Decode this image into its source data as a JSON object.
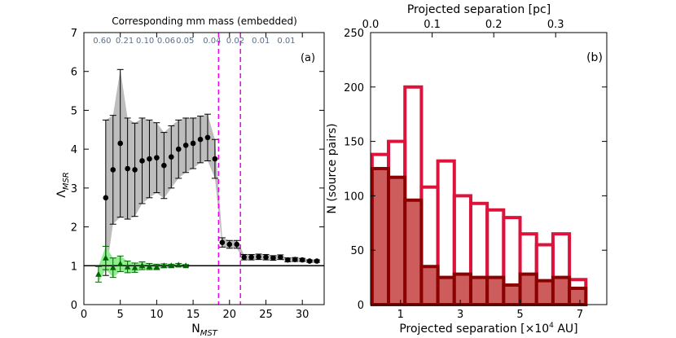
{
  "chart_data": [
    {
      "type": "scatter",
      "panel_label": "(a)",
      "xlabel": "N",
      "xlabel_sub": "MST",
      "ylabel": "Λ",
      "ylabel_sub": "MSR",
      "xlim": [
        0,
        33
      ],
      "ylim": [
        0,
        7
      ],
      "xticks": [
        0,
        5,
        10,
        15,
        20,
        25,
        30
      ],
      "yticks": [
        0,
        1,
        2,
        3,
        4,
        5,
        6,
        7
      ],
      "top_axis_title": "Corresponding mm mass (embedded)",
      "top_axis_labels": [
        {
          "x": 2.5,
          "label": "0.60"
        },
        {
          "x": 5.6,
          "label": "0.21"
        },
        {
          "x": 8.4,
          "label": "0.10"
        },
        {
          "x": 11.3,
          "label": "0.06"
        },
        {
          "x": 13.9,
          "label": "0.05"
        },
        {
          "x": 17.6,
          "label": "0.04"
        },
        {
          "x": 20.8,
          "label": "0.02"
        },
        {
          "x": 24.3,
          "label": "0.01"
        },
        {
          "x": 27.8,
          "label": "0.01"
        }
      ],
      "reference_line_y": 1,
      "vertical_dashed_lines_x": [
        18.5,
        21.5
      ],
      "colors": {
        "embedded_points": "#000000",
        "embedded_band": "#bdbdbd",
        "random_points": "#006400",
        "random_band": "#90ee90",
        "dashed": "#ee00ee"
      },
      "series": [
        {
          "marker": "circle",
          "x": [
            3,
            4,
            5,
            6,
            7,
            8,
            9,
            10,
            11,
            12,
            13,
            14,
            15,
            16,
            17,
            18,
            19,
            20,
            21,
            22,
            23,
            24,
            25,
            26,
            27,
            28,
            29,
            30,
            31,
            32
          ],
          "y": [
            2.75,
            3.47,
            4.15,
            3.5,
            3.47,
            3.7,
            3.75,
            3.78,
            3.58,
            3.8,
            4.0,
            4.1,
            4.15,
            4.25,
            4.3,
            3.75,
            1.6,
            1.55,
            1.55,
            1.22,
            1.22,
            1.23,
            1.22,
            1.2,
            1.22,
            1.15,
            1.16,
            1.15,
            1.12,
            1.12
          ],
          "yerr": [
            2.0,
            1.4,
            1.9,
            1.3,
            1.2,
            1.1,
            1.0,
            0.9,
            0.85,
            0.8,
            0.75,
            0.7,
            0.65,
            0.6,
            0.6,
            0.5,
            0.12,
            0.1,
            0.1,
            0.07,
            0.07,
            0.07,
            0.07,
            0.06,
            0.06,
            0.05,
            0.05,
            0.04,
            0.03,
            0.03
          ]
        },
        {
          "marker": "triangle",
          "x": [
            2,
            3,
            4,
            5,
            6,
            7,
            8,
            9,
            10,
            11,
            12,
            13,
            14
          ],
          "y": [
            0.78,
            1.2,
            0.95,
            1.05,
            0.97,
            0.95,
            1.0,
            0.98,
            0.97,
            1.0,
            1.0,
            1.02,
            1.0
          ],
          "yerr": [
            0.2,
            0.3,
            0.25,
            0.2,
            0.15,
            0.12,
            0.1,
            0.08,
            0.07,
            0.05,
            0.04,
            0.04,
            0.03
          ]
        }
      ]
    },
    {
      "type": "bar",
      "panel_label": "(b)",
      "xlabel": "Projected separation [×10",
      "xlabel_sup": "4",
      "xlabel_unit": " AU]",
      "ylabel": "N (source pairs)",
      "xlim": [
        0,
        7.9
      ],
      "ylim": [
        0,
        250
      ],
      "xticks": [
        1,
        3,
        5,
        7
      ],
      "yticks": [
        0,
        50,
        100,
        150,
        200,
        250
      ],
      "top_axis_title": "Projected separation [pc]",
      "top_axis_ticks": [
        {
          "x": 0,
          "label": "0.0"
        },
        {
          "x": 2.06,
          "label": "0.1"
        },
        {
          "x": 4.12,
          "label": "0.2"
        },
        {
          "x": 6.19,
          "label": "0.3"
        }
      ],
      "bin_width": 0.55,
      "colors": {
        "outline_hist": "#dc143c",
        "filled_hist_fill": "#cd5c5c",
        "filled_hist_edge": "#8b0000"
      },
      "series": [
        {
          "style": "outline",
          "bin_starts": [
            0.05,
            0.6,
            1.15,
            1.7,
            2.25,
            2.8,
            3.35,
            3.9,
            4.45,
            5.0,
            5.55,
            6.1,
            6.65
          ],
          "values": [
            138,
            150,
            200,
            108,
            132,
            100,
            93,
            87,
            80,
            65,
            55,
            65,
            23
          ]
        },
        {
          "style": "filled",
          "bin_starts": [
            0.05,
            0.6,
            1.15,
            1.7,
            2.25,
            2.8,
            3.35,
            3.9,
            4.45,
            5.0,
            5.55,
            6.1,
            6.65
          ],
          "values": [
            125,
            117,
            96,
            35,
            25,
            28,
            25,
            25,
            18,
            28,
            22,
            25,
            15
          ]
        }
      ]
    }
  ]
}
